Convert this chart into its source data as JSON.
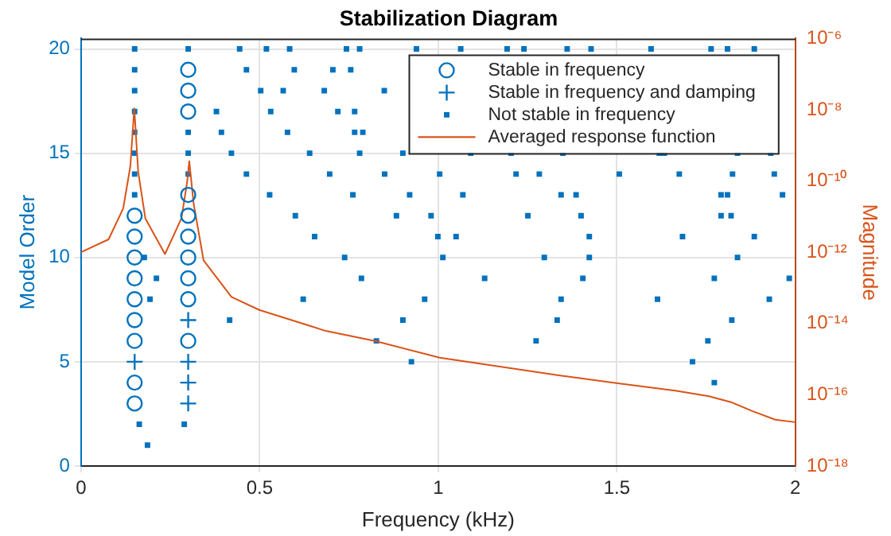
{
  "chart_data": {
    "type": "scatter",
    "title": "Stabilization Diagram",
    "xlabel": "Frequency (kHz)",
    "ylabel": "Model Order",
    "y2label": "Magnitude",
    "xlim": [
      0,
      2
    ],
    "xticks": [
      0,
      0.5,
      1,
      1.5,
      2
    ],
    "ylim": [
      0,
      20.5
    ],
    "yticks": [
      0,
      5,
      10,
      15,
      20
    ],
    "y2lim": [
      1e-18,
      1e-06
    ],
    "y2ticks": [
      {
        "value": 1e-18,
        "label": "10⁻¹⁸"
      },
      {
        "value": 1e-16,
        "label": "10⁻¹⁶"
      },
      {
        "value": 1e-14,
        "label": "10⁻¹⁴"
      },
      {
        "value": 1e-12,
        "label": "10⁻¹²"
      },
      {
        "value": 1e-10,
        "label": "10⁻¹⁰"
      },
      {
        "value": 1e-08,
        "label": "10⁻⁸"
      },
      {
        "value": 1e-06,
        "label": "10⁻⁶"
      }
    ],
    "log": "y2",
    "grid": true,
    "legend": "top right",
    "series": [
      {
        "name": "Stable in frequency",
        "type": "scatter",
        "marker": "circle",
        "color": "#0072bd",
        "x": [
          0.15,
          0.15,
          0.15,
          0.15,
          0.15,
          0.15,
          0.15,
          0.15,
          0.15,
          0.3,
          0.3,
          0.3,
          0.3,
          0.3,
          0.3,
          0.3,
          0.3,
          0.3,
          0.3
        ],
        "values": [
          12,
          11,
          10,
          9,
          8,
          7,
          6,
          4,
          3,
          19,
          18,
          17,
          13,
          12,
          11,
          10,
          9,
          8,
          6
        ]
      },
      {
        "name": "Stable in frequency and damping",
        "type": "scatter",
        "marker": "cross",
        "color": "#0072bd",
        "x": [
          0.15,
          0.3,
          0.3,
          0.3,
          0.3
        ],
        "values": [
          5,
          7,
          5,
          4,
          3
        ]
      },
      {
        "name": "Not stable in frequency",
        "type": "scatter",
        "marker": "square",
        "color": "#0072bd",
        "x": [
          0.15,
          0.15,
          0.15,
          0.15,
          0.15,
          0.15,
          0.15,
          0.15,
          0.163,
          0.186,
          0.177,
          0.211,
          0.193,
          0.3,
          0.3,
          0.3,
          0.3,
          0.289,
          0.444,
          0.519,
          0.584,
          0.463,
          0.597,
          0.503,
          0.566,
          0.681,
          0.379,
          0.531,
          0.393,
          0.578,
          0.421,
          0.64,
          0.463,
          0.528,
          0.6,
          0.654,
          0.622,
          0.416,
          0.743,
          0.78,
          0.939,
          1.063,
          1.193,
          1.24,
          0.705,
          0.755,
          0.849,
          0.719,
          0.766,
          0.766,
          0.789,
          0.78,
          0.901,
          1.091,
          1.204,
          0.696,
          0.85,
          1.004,
          1.218,
          1.283,
          0.761,
          0.92,
          1.069,
          0.883,
          0.98,
          1.251,
          0.999,
          1.05,
          0.738,
          1.013,
          1.297,
          0.785,
          1.13,
          0.962,
          0.901,
          1.333,
          0.827,
          1.274,
          0.925,
          1.361,
          1.428,
          1.596,
          1.764,
          1.81,
          1.885,
          1.349,
          1.619,
          1.633,
          1.838,
          1.931,
          1.507,
          1.675,
          1.824,
          1.941,
          1.344,
          1.386,
          1.792,
          1.81,
          1.964,
          1.4,
          1.792,
          1.82,
          1.423,
          1.684,
          1.885,
          1.423,
          1.838,
          1.405,
          1.773,
          1.983,
          1.344,
          1.614,
          1.927,
          1.822,
          1.755,
          1.712,
          1.773
        ],
        "values": [
          20,
          19,
          18,
          17,
          16,
          15,
          14,
          13,
          2,
          1,
          10,
          9,
          8,
          20,
          16,
          15,
          14,
          2,
          20,
          20,
          20,
          19,
          19,
          18,
          18,
          18,
          17,
          17,
          16,
          16,
          15,
          15,
          14,
          13,
          12,
          11,
          8,
          7,
          20,
          20,
          20,
          20,
          20,
          20,
          19,
          19,
          18,
          17,
          17,
          16,
          16,
          15,
          15,
          15,
          15,
          14,
          14,
          14,
          14,
          14,
          13,
          13,
          13,
          12,
          12,
          12,
          11,
          11,
          10,
          10,
          10,
          9,
          9,
          8,
          7,
          7,
          6,
          6,
          5,
          20,
          20,
          20,
          20,
          20,
          20,
          15,
          15,
          15,
          15,
          15,
          14,
          14,
          14,
          14,
          13,
          13,
          13,
          13,
          13,
          12,
          12,
          12,
          11,
          11,
          11,
          10,
          10,
          9,
          9,
          9,
          8,
          8,
          8,
          7,
          6,
          5,
          4
        ]
      },
      {
        "name": "Averaged response function",
        "type": "line",
        "marker": "none",
        "axis": "y2",
        "color": "#d95319",
        "x": [
          0,
          0.077,
          0.118,
          0.138,
          0.149,
          0.16,
          0.18,
          0.235,
          0.281,
          0.297,
          0.303,
          0.315,
          0.343,
          0.421,
          0.499,
          0.639,
          0.685,
          0.825,
          1.004,
          1.338,
          1.503,
          1.664,
          1.758,
          1.82,
          1.882,
          1.944,
          2
        ],
        "values": [
          1e-12,
          2.3e-12,
          1.7e-11,
          2.6e-10,
          1.1e-08,
          1.8e-10,
          8.9e-12,
          8.9e-13,
          8.9e-12,
          9.3e-11,
          3.6e-10,
          2.4e-11,
          5.9e-13,
          5.6e-14,
          2.4e-14,
          8.7e-15,
          6.2e-15,
          3.2e-15,
          1.1e-15,
          3.5e-16,
          2.1e-16,
          1.3e-16,
          9.1e-17,
          6.2e-17,
          3.4e-17,
          2e-17,
          1.7e-17
        ]
      }
    ]
  }
}
